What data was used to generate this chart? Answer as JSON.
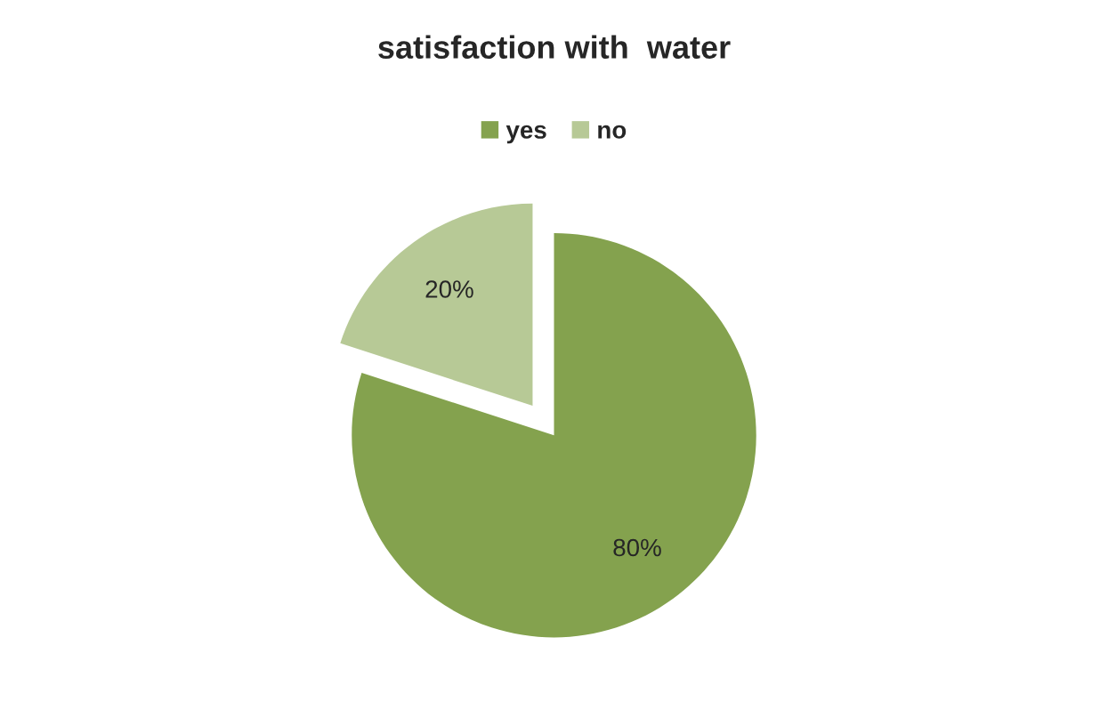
{
  "chart_data": {
    "type": "pie",
    "title": "satisfaction with  water",
    "categories": [
      "yes",
      "no"
    ],
    "values": [
      80,
      20
    ],
    "colors": [
      "#84a24e",
      "#b7c996"
    ],
    "value_labels": [
      "80%",
      "20%"
    ],
    "legend": "top"
  }
}
